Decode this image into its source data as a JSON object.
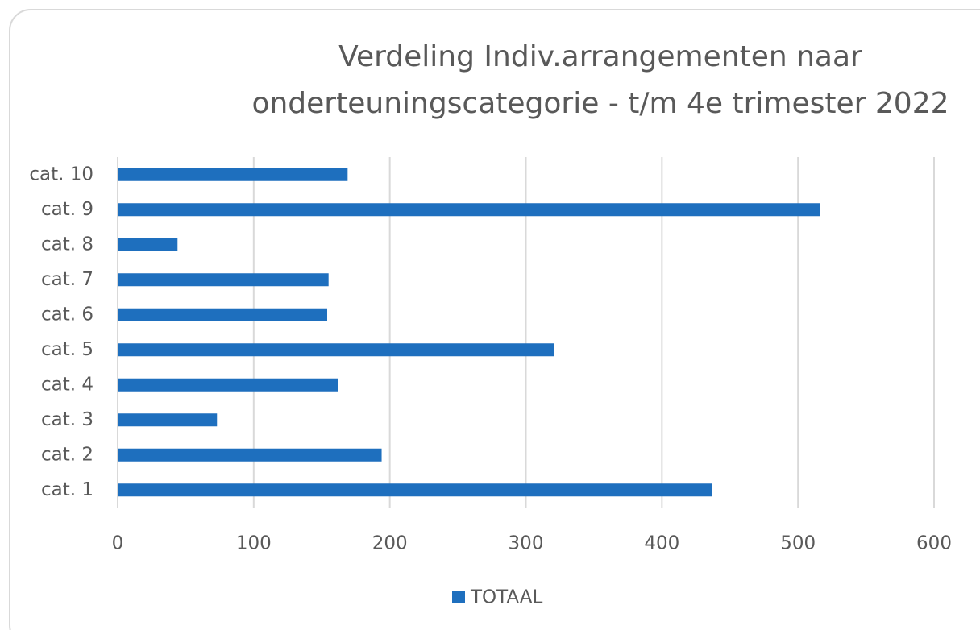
{
  "chart_data": {
    "type": "barh",
    "title": [
      "Verdeling Indiv.arrangementen naar",
      "onderteuningscategorie - t/m 4e trimester 2022"
    ],
    "categories": [
      "cat. 1",
      "cat. 2",
      "cat. 3",
      "cat. 4",
      "cat. 5",
      "cat. 6",
      "cat. 7",
      "cat. 8",
      "cat. 9",
      "cat. 10"
    ],
    "series": [
      {
        "name": "TOTAAL",
        "color": "#1e6fbe",
        "values": [
          437,
          194,
          73,
          162,
          321,
          154,
          155,
          44,
          516,
          169
        ]
      }
    ],
    "xlim": [
      0,
      600
    ],
    "xticks": [
      0,
      100,
      200,
      300,
      400,
      500,
      600
    ],
    "grid": true,
    "legend": "bottom"
  }
}
